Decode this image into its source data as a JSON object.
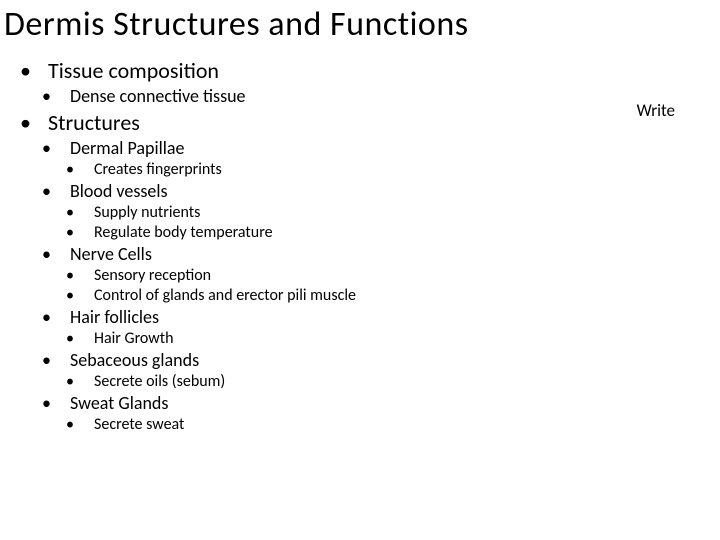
{
  "title": "Dermis Structures and Functions",
  "note": "Write",
  "colors": {
    "background": "#ffffff",
    "text": "#000000"
  },
  "typography": {
    "title_fontsize": 34,
    "l1_fontsize": 22,
    "l2_fontsize": 18,
    "l3_fontsize": 16,
    "font_family": "Calibri"
  },
  "outline": {
    "sec1": {
      "label": "Tissue composition",
      "sub1": "Dense connective tissue"
    },
    "sec2": {
      "label": "Structures",
      "s1": {
        "label": "Dermal Papillae",
        "p1": "Creates fingerprints"
      },
      "s2": {
        "label": "Blood vessels",
        "p1": "Supply nutrients",
        "p2": "Regulate body temperature"
      },
      "s3": {
        "label": "Nerve Cells",
        "p1": "Sensory reception",
        "p2": "Control of glands and erector pili muscle"
      },
      "s4": {
        "label": "Hair follicles",
        "p1": "Hair Growth"
      },
      "s5": {
        "label": "Sebaceous glands",
        "p1": "Secrete oils (sebum)"
      },
      "s6": {
        "label": "Sweat Glands",
        "p1": "Secrete sweat"
      }
    }
  }
}
